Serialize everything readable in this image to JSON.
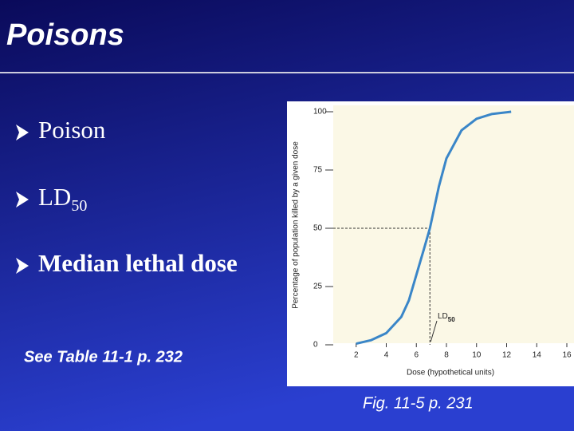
{
  "slide": {
    "title": "Poisons",
    "bullets": [
      {
        "text": "Poison"
      },
      {
        "text": "LD",
        "subscript": "50"
      },
      {
        "text": "Median lethal dose"
      }
    ],
    "note": "See Table 11-1 p. 232",
    "caption": "Fig. 11-5 p. 231"
  },
  "chart_data": {
    "type": "line",
    "ylabel": "Percentage of population killed by a given dose",
    "xlabel": "Dose (hypothetical units)",
    "x": [
      2,
      3,
      4,
      5,
      5.5,
      6,
      6.5,
      6.9,
      7.5,
      8,
      9,
      10,
      11,
      12.3
    ],
    "series": [
      {
        "color": "#3a86c8",
        "values": [
          0.5,
          2,
          5,
          12,
          19,
          30,
          41,
          50,
          68,
          80,
          92,
          97,
          99,
          100
        ]
      }
    ],
    "annotation": {
      "text": "LD",
      "subscript": "50",
      "x": 6.9,
      "y": 50
    },
    "xlim": [
      0,
      16
    ],
    "ylim": [
      0,
      100
    ],
    "xticks": [
      2,
      4,
      6,
      8,
      10,
      12,
      14,
      16
    ],
    "yticks": [
      0,
      25,
      50,
      75,
      100
    ]
  }
}
